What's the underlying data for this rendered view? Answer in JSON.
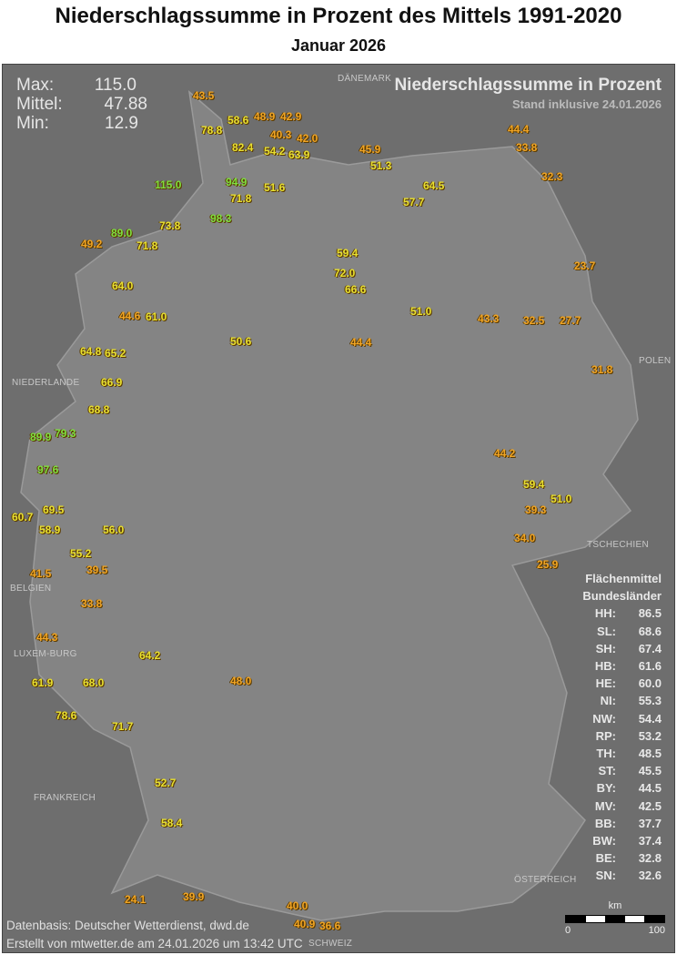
{
  "title": "Niederschlagssumme in Prozent des Mittels 1991-2020",
  "subtitle": "Januar 2026",
  "stats": {
    "max_label": "Max:",
    "max": "115.0",
    "mean_label": "Mittel:",
    "mean": "47.88",
    "min_label": "Min:",
    "min": "12.9"
  },
  "map_title": "Niederschlagssumme in Prozent",
  "stand": "Stand inklusive 24.01.2026",
  "legend": {
    "heading1": "Flächenmittel",
    "heading2": "Bundesländer",
    "rows": [
      {
        "state": "HH:",
        "value": "86.5"
      },
      {
        "state": "SL:",
        "value": "68.6"
      },
      {
        "state": "SH:",
        "value": "67.4"
      },
      {
        "state": "HB:",
        "value": "61.6"
      },
      {
        "state": "HE:",
        "value": "60.0"
      },
      {
        "state": "NI:",
        "value": "55.3"
      },
      {
        "state": "NW:",
        "value": "54.4"
      },
      {
        "state": "RP:",
        "value": "53.2"
      },
      {
        "state": "TH:",
        "value": "48.5"
      },
      {
        "state": "ST:",
        "value": "45.5"
      },
      {
        "state": "BY:",
        "value": "44.5"
      },
      {
        "state": "MV:",
        "value": "42.5"
      },
      {
        "state": "BB:",
        "value": "37.7"
      },
      {
        "state": "BW:",
        "value": "37.4"
      },
      {
        "state": "BE:",
        "value": "32.8"
      },
      {
        "state": "SN:",
        "value": "32.6"
      }
    ]
  },
  "countries": [
    "DÄNEMARK",
    "NIEDERLANDE",
    "POLEN",
    "BELGIEN",
    "LUXEM-BURG",
    "FRANKREICH",
    "SCHWEIZ",
    "ÖSTERREICH",
    "TSCHECHIEN"
  ],
  "colors": {
    "low": "#f0a424",
    "mid": "#e8e030",
    "high": "#7ee040",
    "background": "#6e6e6e"
  },
  "stations": [
    {
      "v": "43.5",
      "c": "low"
    },
    {
      "v": "58.6",
      "c": "mid"
    },
    {
      "v": "48.9",
      "c": "low"
    },
    {
      "v": "42.9",
      "c": "low"
    },
    {
      "v": "78.8",
      "c": "mid"
    },
    {
      "v": "40.3",
      "c": "low"
    },
    {
      "v": "42.0",
      "c": "low"
    },
    {
      "v": "44.4",
      "c": "low"
    },
    {
      "v": "82.4",
      "c": "mid"
    },
    {
      "v": "54.2",
      "c": "mid"
    },
    {
      "v": "63.9",
      "c": "mid"
    },
    {
      "v": "45.9",
      "c": "low"
    },
    {
      "v": "51.3",
      "c": "mid"
    },
    {
      "v": "33.8",
      "c": "low"
    },
    {
      "v": "115.0",
      "c": "high"
    },
    {
      "v": "94.9",
      "c": "high"
    },
    {
      "v": "51.6",
      "c": "mid"
    },
    {
      "v": "32.3",
      "c": "low"
    },
    {
      "v": "64.5",
      "c": "mid"
    },
    {
      "v": "71.8",
      "c": "mid"
    },
    {
      "v": "98.3",
      "c": "high"
    },
    {
      "v": "57.7",
      "c": "mid"
    },
    {
      "v": "89.0",
      "c": "high"
    },
    {
      "v": "49.2",
      "c": "low"
    },
    {
      "v": "73.8",
      "c": "mid"
    },
    {
      "v": "71.8",
      "c": "mid"
    },
    {
      "v": "59.4",
      "c": "mid"
    },
    {
      "v": "72.0",
      "c": "mid"
    },
    {
      "v": "64.0",
      "c": "mid"
    },
    {
      "v": "66.6",
      "c": "mid"
    },
    {
      "v": "23.7",
      "c": "low"
    },
    {
      "v": "44.6",
      "c": "low"
    },
    {
      "v": "61.0",
      "c": "mid"
    },
    {
      "v": "51.0",
      "c": "mid"
    },
    {
      "v": "43.3",
      "c": "low"
    },
    {
      "v": "32.5",
      "c": "low"
    },
    {
      "v": "27.7",
      "c": "low"
    },
    {
      "v": "64.8",
      "c": "mid"
    },
    {
      "v": "65.2",
      "c": "mid"
    },
    {
      "v": "50.6",
      "c": "mid"
    },
    {
      "v": "44.4",
      "c": "low"
    },
    {
      "v": "66.9",
      "c": "mid"
    },
    {
      "v": "31.8",
      "c": "low"
    },
    {
      "v": "68.8",
      "c": "mid"
    },
    {
      "v": "89.9",
      "c": "high"
    },
    {
      "v": "79.3",
      "c": "high"
    },
    {
      "v": "97.6",
      "c": "high"
    },
    {
      "v": "44.2",
      "c": "low"
    },
    {
      "v": "59.4",
      "c": "mid"
    },
    {
      "v": "51.0",
      "c": "mid"
    },
    {
      "v": "60.7",
      "c": "mid"
    },
    {
      "v": "69.5",
      "c": "mid"
    },
    {
      "v": "56.0",
      "c": "mid"
    },
    {
      "v": "58.9",
      "c": "mid"
    },
    {
      "v": "41.5",
      "c": "low"
    },
    {
      "v": "39.5",
      "c": "low"
    },
    {
      "v": "55.2",
      "c": "mid"
    },
    {
      "v": "33.8",
      "c": "low"
    },
    {
      "v": "44.3",
      "c": "low"
    },
    {
      "v": "64.2",
      "c": "mid"
    },
    {
      "v": "61.9",
      "c": "mid"
    },
    {
      "v": "68.0",
      "c": "mid"
    },
    {
      "v": "78.6",
      "c": "mid"
    },
    {
      "v": "71.7",
      "c": "mid"
    },
    {
      "v": "48.0",
      "c": "low"
    },
    {
      "v": "52.7",
      "c": "mid"
    },
    {
      "v": "58.4",
      "c": "mid"
    },
    {
      "v": "39.9",
      "c": "low"
    },
    {
      "v": "24.1",
      "c": "low"
    },
    {
      "v": "40.9",
      "c": "low"
    },
    {
      "v": "36.6",
      "c": "low"
    },
    {
      "v": "40.0",
      "c": "low"
    },
    {
      "v": "34.0",
      "c": "low"
    },
    {
      "v": "39.3",
      "c": "low"
    },
    {
      "v": "25.9",
      "c": "low"
    }
  ],
  "footer": {
    "source": "Datenbasis: Deutscher Wetterdienst, dwd.de",
    "created": "Erstellt von mtwetter.de am 24.01.2026 um 13:42 UTC"
  },
  "scale": {
    "unit": "km",
    "start": "0",
    "end": "100"
  }
}
